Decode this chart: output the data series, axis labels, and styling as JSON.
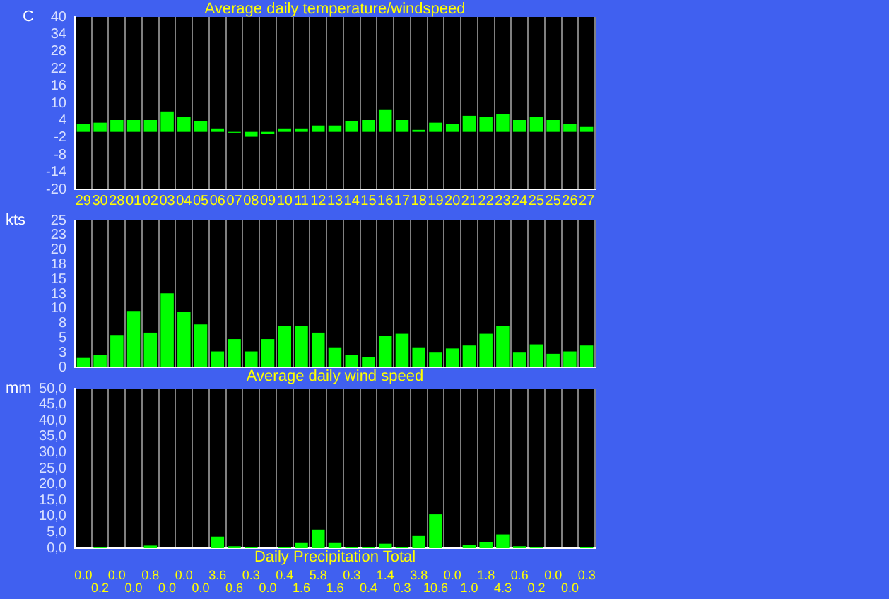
{
  "chart_data": [
    {
      "type": "bar",
      "title": "Average daily temperature/windspeed",
      "ylabel": "C",
      "categories": [
        "29",
        "30",
        "28",
        "01",
        "02",
        "03",
        "04",
        "05",
        "06",
        "07",
        "08",
        "09",
        "10",
        "11",
        "12",
        "13",
        "14",
        "15",
        "16",
        "17",
        "18",
        "19",
        "20",
        "21",
        "22",
        "23",
        "24",
        "25",
        "25",
        "26",
        "27"
      ],
      "series": [
        {
          "color": "#00ff00",
          "values": [
            2.7,
            3.2,
            4.1,
            4.1,
            4.1,
            7.1,
            5.1,
            3.6,
            1.2,
            -0.3,
            -1.7,
            -0.8,
            1.2,
            1.2,
            2.2,
            2.2,
            3.6,
            4.1,
            7.6,
            4.1,
            0.7,
            3.2,
            2.7,
            5.6,
            5.1,
            6.1,
            4.1,
            5.1,
            4.1,
            2.7,
            1.7
          ]
        }
      ],
      "ylim": [
        -20,
        40
      ],
      "yticks": [
        -20,
        -14,
        -8,
        -2,
        4,
        10,
        16,
        22,
        28,
        34,
        40
      ],
      "grid": "x",
      "legend": false
    },
    {
      "type": "bar",
      "title": "Average daily wind speed",
      "ylabel": "kts",
      "categories": [
        "29",
        "30",
        "28",
        "01",
        "02",
        "03",
        "04",
        "05",
        "06",
        "07",
        "08",
        "09",
        "10",
        "11",
        "12",
        "13",
        "14",
        "15",
        "16",
        "17",
        "18",
        "19",
        "20",
        "21",
        "22",
        "23",
        "24",
        "25",
        "25",
        "26",
        "27"
      ],
      "series": [
        {
          "color": "#00ff00",
          "values": [
            1.6,
            2.1,
            5.5,
            9.6,
            5.9,
            12.6,
            9.4,
            7.3,
            2.7,
            4.8,
            2.7,
            4.8,
            7.1,
            7.1,
            5.9,
            3.4,
            2.1,
            1.8,
            5.3,
            5.7,
            3.4,
            2.5,
            3.2,
            3.7,
            5.7,
            7.1,
            2.5,
            3.9,
            2.3,
            2.7,
            3.7
          ]
        }
      ],
      "ylim": [
        0,
        25
      ],
      "yticks": [
        0,
        {
          "value": 2.5,
          "label": "3"
        },
        5,
        {
          "value": 7.5,
          "label": "8"
        },
        10,
        {
          "value": 12.5,
          "label": "13"
        },
        15,
        {
          "value": 17.5,
          "label": "18"
        },
        20,
        {
          "value": 22.5,
          "label": "23"
        },
        25
      ],
      "grid": "x",
      "legend": false,
      "tick_labels": "y"
    },
    {
      "type": "bar",
      "title": "Daily Precipitation Total",
      "ylabel": "mm",
      "categories": [
        "29",
        "30",
        "28",
        "01",
        "02",
        "03",
        "04",
        "05",
        "06",
        "07",
        "08",
        "09",
        "10",
        "11",
        "12",
        "13",
        "14",
        "15",
        "16",
        "17",
        "18",
        "19",
        "20",
        "21",
        "22",
        "23",
        "24",
        "25",
        "25",
        "26",
        "27"
      ],
      "series": [
        {
          "color": "#00ff00",
          "values": [
            0.0,
            0.2,
            0.0,
            0.0,
            0.8,
            0.0,
            0.0,
            0.0,
            3.6,
            0.6,
            0.3,
            0.0,
            0.4,
            1.6,
            5.8,
            1.6,
            0.3,
            0.4,
            1.4,
            0.3,
            3.8,
            10.6,
            0.0,
            1.0,
            1.8,
            4.3,
            0.6,
            0.2,
            0.0,
            0.0,
            0.3
          ]
        }
      ],
      "ylim": [
        0,
        50
      ],
      "yticks": [
        {
          "value": 0,
          "label": "0,0"
        },
        {
          "value": 5,
          "label": "5,0"
        },
        {
          "value": 10,
          "label": "10,0"
        },
        {
          "value": 15,
          "label": "15,0"
        },
        {
          "value": 20,
          "label": "20,0"
        },
        {
          "value": 25,
          "label": "25,0"
        },
        {
          "value": 30,
          "label": "30,0"
        },
        {
          "value": 35,
          "label": "35,0"
        },
        {
          "value": 40,
          "label": "40,0"
        },
        {
          "value": 45,
          "label": "45,0"
        },
        {
          "value": 50,
          "label": "50,0"
        }
      ],
      "grid": "x",
      "legend": false,
      "tick_labels": "y",
      "value_labels": [
        "0.0",
        "0.2",
        "0.0",
        "0.0",
        "0.8",
        "0.0",
        "0.0",
        "0.0",
        "3.6",
        "0.6",
        "0.3",
        "0.0",
        "0.4",
        "1.6",
        "5.8",
        "1.6",
        "0.3",
        "0.4",
        "1.4",
        "0.3",
        "3.8",
        "10.6",
        "0.0",
        "1.0",
        "1.8",
        "4.3",
        "0.6",
        "0.2",
        "0.0",
        "0.0",
        "0.3"
      ]
    }
  ]
}
